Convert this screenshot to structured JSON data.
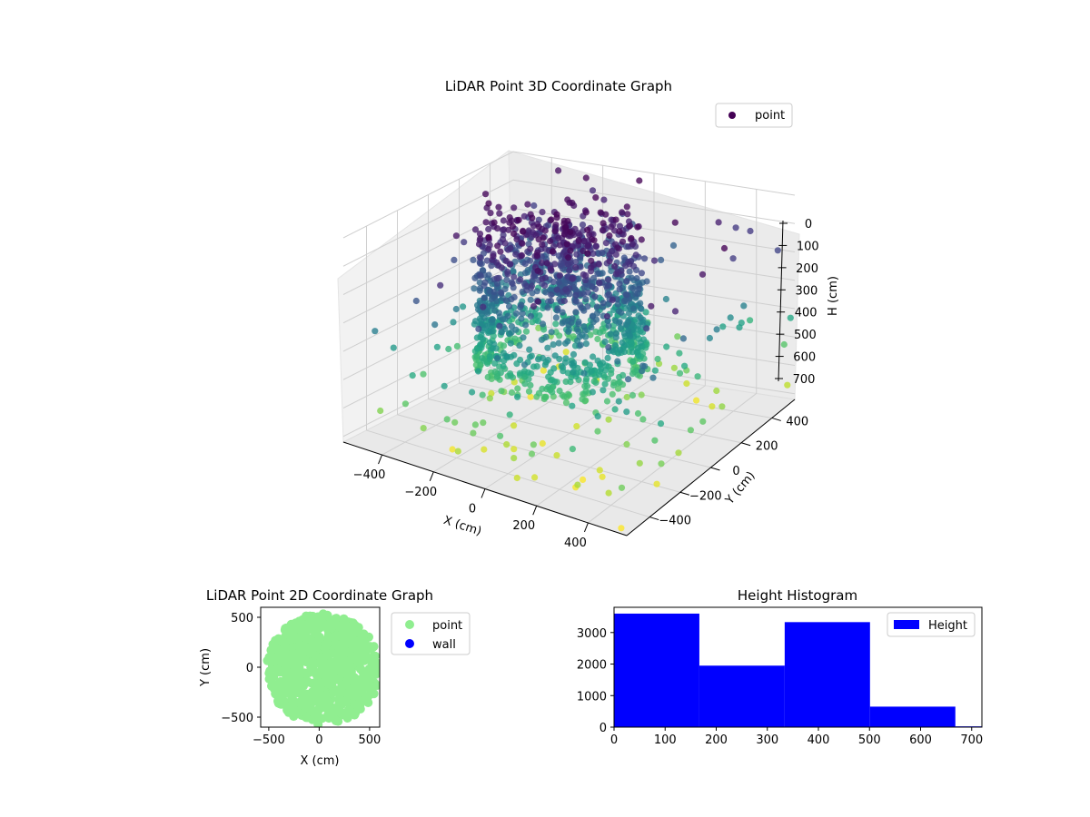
{
  "colors": {
    "viridis_dark": "#440154",
    "viridis_blue": "#3b528b",
    "viridis_teal": "#21918c",
    "viridis_green": "#5ec962",
    "viridis_yellow": "#fde725",
    "point_2d": "#90ee90",
    "wall": "#0000ff",
    "hist_bar": "#0000ff"
  },
  "chart_data": [
    {
      "type": "scatter",
      "projection": "3d",
      "title": "LiDAR Point 3D Coordinate Graph",
      "xlabel": "X (cm)",
      "ylabel": "Y (cm)",
      "zlabel": "H (cm)",
      "x_ticks": [
        "−400",
        "−200",
        "0",
        "200",
        "400"
      ],
      "y_ticks": [
        "−400",
        "−200",
        "0",
        "200",
        "400"
      ],
      "z_ticks": [
        "0",
        "100",
        "200",
        "300",
        "400",
        "500",
        "600",
        "700"
      ],
      "xlim": [
        -550,
        550
      ],
      "ylim": [
        -550,
        550
      ],
      "zlim": [
        0,
        720
      ],
      "z_inverted": true,
      "colormap": "viridis",
      "legend": {
        "entries": [
          "point"
        ],
        "placement": "top-right"
      },
      "grid": true
    },
    {
      "type": "scatter",
      "title": "LiDAR Point 2D Coordinate Graph",
      "xlabel": "X (cm)",
      "ylabel": "Y (cm)",
      "x_ticks": [
        "−500",
        "0",
        "500"
      ],
      "y_ticks": [
        "−500",
        "0",
        "500"
      ],
      "xlim": [
        -580,
        600
      ],
      "ylim": [
        -600,
        600
      ],
      "series": [
        {
          "name": "point",
          "color": "#90ee90"
        },
        {
          "name": "wall",
          "color": "#0000ff"
        }
      ],
      "legend": {
        "entries": [
          "point",
          "wall"
        ],
        "placement": "outside-right"
      },
      "grid": false
    },
    {
      "type": "bar",
      "title": "Height Histogram",
      "x_ticks": [
        "0",
        "100",
        "200",
        "300",
        "400",
        "500",
        "600",
        "700"
      ],
      "y_ticks": [
        "0",
        "1000",
        "2000",
        "3000"
      ],
      "xlim": [
        0,
        720
      ],
      "ylim": [
        0,
        3800
      ],
      "bins": [
        {
          "x0": 0,
          "x1": 167,
          "count": 3600
        },
        {
          "x0": 167,
          "x1": 334,
          "count": 1950
        },
        {
          "x0": 334,
          "x1": 501,
          "count": 3330
        },
        {
          "x0": 501,
          "x1": 668,
          "count": 650
        },
        {
          "x0": 668,
          "x1": 720,
          "count": 25
        }
      ],
      "series": [
        {
          "name": "Height",
          "color": "#0000ff"
        }
      ],
      "legend": {
        "entries": [
          "Height"
        ],
        "placement": "top-right"
      },
      "grid": false
    }
  ]
}
